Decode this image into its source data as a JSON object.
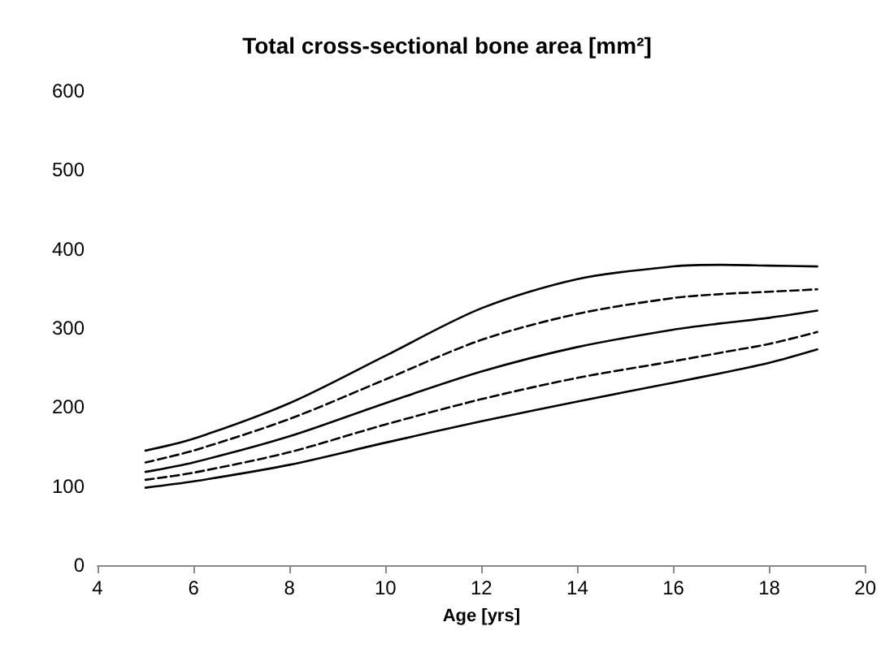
{
  "chart_data": {
    "type": "line",
    "title": "Total cross-sectional bone area [mm²]",
    "xlabel": "Age [yrs]",
    "x": [
      5,
      6,
      8,
      10,
      12,
      14,
      16,
      17,
      18,
      19
    ],
    "series": [
      {
        "color": "#000000",
        "line_style": "solid",
        "values": [
          145,
          160,
          205,
          265,
          325,
          362,
          378,
          380,
          379,
          378
        ]
      },
      {
        "color": "#000000",
        "line_style": "dashed",
        "values": [
          130,
          145,
          185,
          235,
          285,
          318,
          338,
          343,
          346,
          349
        ]
      },
      {
        "color": "#000000",
        "line_style": "solid",
        "values": [
          118,
          130,
          163,
          205,
          245,
          276,
          298,
          306,
          313,
          322
        ]
      },
      {
        "color": "#000000",
        "line_style": "dashed",
        "values": [
          108,
          117,
          143,
          178,
          210,
          237,
          258,
          269,
          280,
          295
        ]
      },
      {
        "color": "#000000",
        "line_style": "solid",
        "values": [
          98,
          106,
          127,
          155,
          182,
          207,
          231,
          243,
          256,
          273
        ]
      }
    ],
    "xlim": [
      4,
      20
    ],
    "xticks": [
      4,
      6,
      8,
      10,
      12,
      14,
      16,
      18,
      20
    ],
    "ylim": [
      0,
      600
    ],
    "yticks": [
      0,
      100,
      200,
      300,
      400,
      500,
      600
    ],
    "grid": false,
    "marker": "none"
  }
}
